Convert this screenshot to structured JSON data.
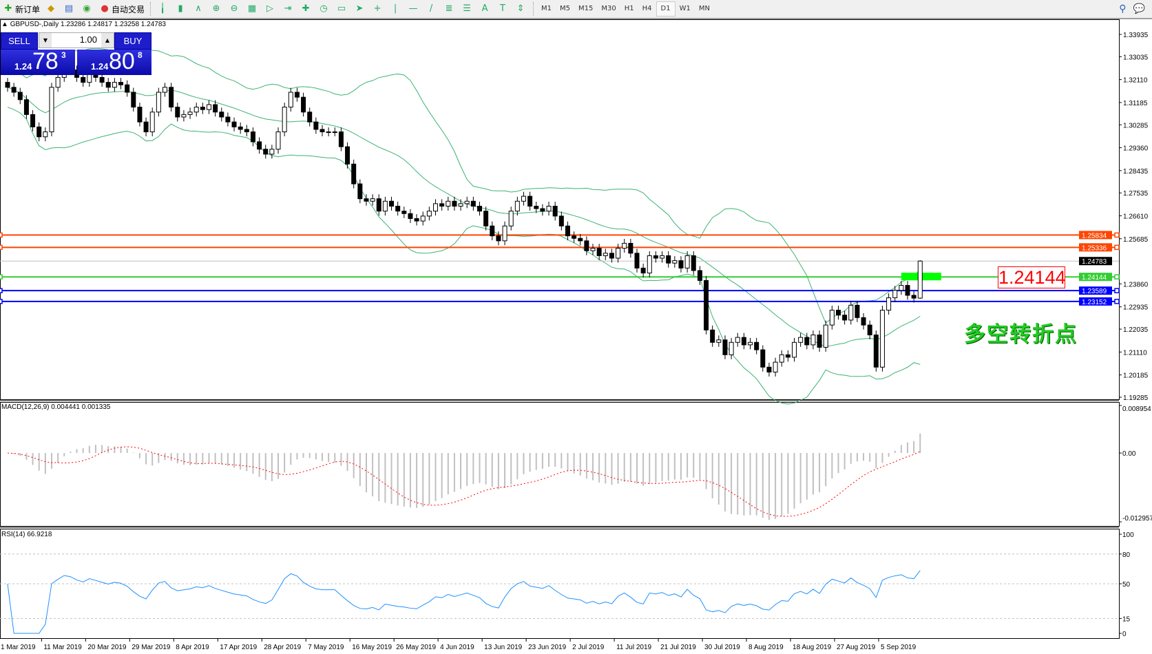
{
  "toolbar": {
    "new_order": {
      "label": "新订单",
      "icon": "new-order-icon"
    },
    "auto_trading": {
      "label": "自动交易",
      "icon": "auto-trading-icon"
    },
    "tools": [
      "bar-chart-icon",
      "candlestick-icon",
      "line-chart-icon",
      "zoom-in-icon",
      "zoom-out-icon",
      "tile-windows-icon",
      "auto-scroll-icon",
      "chart-shift-icon",
      "indicators-icon",
      "periods-icon",
      "templates-icon",
      "cursor-icon",
      "crosshair-icon",
      "vertical-line-icon",
      "horizontal-line-icon",
      "trendline-icon",
      "fibonacci-icon",
      "fibo-fan-icon",
      "text-icon",
      "text-label-icon",
      "arrows-icon"
    ],
    "timeframes": [
      "M1",
      "M5",
      "M15",
      "M30",
      "H1",
      "H4",
      "D1",
      "W1",
      "MN"
    ],
    "active_timeframe": "D1"
  },
  "chart_header": {
    "title": "GBPUSD-,Daily  1.23286 1.24817 1.23258 1.24783"
  },
  "one_click": {
    "sell_label": "SELL",
    "buy_label": "BUY",
    "lots": "1.00",
    "sell_price": {
      "prefix": "1.24",
      "big": "78",
      "sup": "3"
    },
    "buy_price": {
      "prefix": "1.24",
      "big": "80",
      "sup": "8"
    }
  },
  "annotation": {
    "pivot_value": "1.24144",
    "pivot_text": "多空转折点",
    "text_color": "#22cc22",
    "box_color": "#ff0000"
  },
  "chart_data": [
    {
      "type": "candlestick",
      "symbol": "GBPUSD-",
      "timeframe": "Daily",
      "last_bar": {
        "open": 1.23286,
        "high": 1.24817,
        "low": 1.23258,
        "close": 1.24783
      },
      "closes": [
        1.318,
        1.316,
        1.313,
        1.307,
        1.302,
        1.298,
        1.3,
        1.318,
        1.322,
        1.326,
        1.325,
        1.322,
        1.32,
        1.324,
        1.322,
        1.32,
        1.318,
        1.32,
        1.319,
        1.316,
        1.31,
        1.304,
        1.3,
        1.308,
        1.316,
        1.318,
        1.31,
        1.306,
        1.307,
        1.308,
        1.31,
        1.309,
        1.311,
        1.308,
        1.306,
        1.304,
        1.302,
        1.301,
        1.3,
        1.296,
        1.293,
        1.291,
        1.293,
        1.3,
        1.31,
        1.316,
        1.314,
        1.308,
        1.304,
        1.301,
        1.3,
        1.3,
        1.3,
        1.294,
        1.287,
        1.279,
        1.273,
        1.272,
        1.273,
        1.268,
        1.272,
        1.27,
        1.268,
        1.267,
        1.265,
        1.264,
        1.266,
        1.268,
        1.271,
        1.27,
        1.272,
        1.27,
        1.271,
        1.272,
        1.27,
        1.268,
        1.262,
        1.258,
        1.256,
        1.262,
        1.268,
        1.272,
        1.274,
        1.27,
        1.269,
        1.268,
        1.27,
        1.266,
        1.262,
        1.258,
        1.257,
        1.256,
        1.252,
        1.253,
        1.25,
        1.251,
        1.249,
        1.253,
        1.255,
        1.251,
        1.245,
        1.243,
        1.25,
        1.249,
        1.25,
        1.247,
        1.248,
        1.245,
        1.25,
        1.244,
        1.24,
        1.22,
        1.215,
        1.216,
        1.21,
        1.215,
        1.217,
        1.214,
        1.215,
        1.212,
        1.205,
        1.203,
        1.207,
        1.21,
        1.209,
        1.215,
        1.217,
        1.214,
        1.218,
        1.213,
        1.222,
        1.228,
        1.226,
        1.224,
        1.23,
        1.225,
        1.222,
        1.218,
        1.205,
        1.228,
        1.233,
        1.236,
        1.238,
        1.234,
        1.23286,
        1.24783
      ],
      "overlays": {
        "bollinger_bands": {
          "color": "#3cb371"
        }
      },
      "ylim": [
        1.19285,
        1.33935
      ],
      "y_ticks": [
        "1.33935",
        "1.33035",
        "1.32110",
        "1.31185",
        "1.30285",
        "1.29360",
        "1.28435",
        "1.27535",
        "1.26610",
        "1.25685",
        "1.23860",
        "1.22935",
        "1.22035",
        "1.21110",
        "1.20185",
        "1.19285"
      ],
      "x_ticks": [
        "1 Mar 2019",
        "11 Mar 2019",
        "20 Mar 2019",
        "29 Mar 2019",
        "8 Apr 2019",
        "17 Apr 2019",
        "28 Apr 2019",
        "7 May 2019",
        "16 May 2019",
        "26 May 2019",
        "4 Jun 2019",
        "13 Jun 2019",
        "23 Jun 2019",
        "2 Jul 2019",
        "11 Jul 2019",
        "21 Jul 2019",
        "30 Jul 2019",
        "8 Aug 2019",
        "18 Aug 2019",
        "27 Aug 2019",
        "5 Sep 2019"
      ],
      "horizontal_lines": [
        {
          "value": 1.25834,
          "label": "1.25834",
          "color": "#ff4500"
        },
        {
          "value": 1.25336,
          "label": "1.25336",
          "color": "#ff4500"
        },
        {
          "value": 1.24783,
          "label": "1.24783",
          "color": "#c0c0c0",
          "label_bg": "#000000"
        },
        {
          "value": 1.24144,
          "label": "1.24144",
          "color": "#32cd32"
        },
        {
          "value": 1.23589,
          "label": "1.23589",
          "color": "#0000ff"
        },
        {
          "value": 1.23152,
          "label": "1.23152",
          "color": "#0000ff"
        }
      ],
      "highlight_zone": {
        "value": 1.24144,
        "color": "#00ff00"
      }
    },
    {
      "type": "macd",
      "label": "MACD(12,26,9) 0.004441 0.001335",
      "params": [
        12,
        26,
        9
      ],
      "main": 0.004441,
      "signal": 0.001335,
      "ylim": [
        -0.012957,
        0.008954
      ],
      "y_ticks": [
        "0.008954",
        "0.00",
        "-0.012957"
      ],
      "histogram_color": "#c0c0c0",
      "signal_color": "#ff0000"
    },
    {
      "type": "rsi",
      "label": "RSI(14) 66.9218",
      "period": 14,
      "value": 66.9218,
      "ylim": [
        0,
        100
      ],
      "y_ticks": [
        "100",
        "80",
        "50",
        "15",
        "0"
      ],
      "levels": [
        80,
        50,
        15
      ],
      "color": "#1e90ff"
    }
  ]
}
